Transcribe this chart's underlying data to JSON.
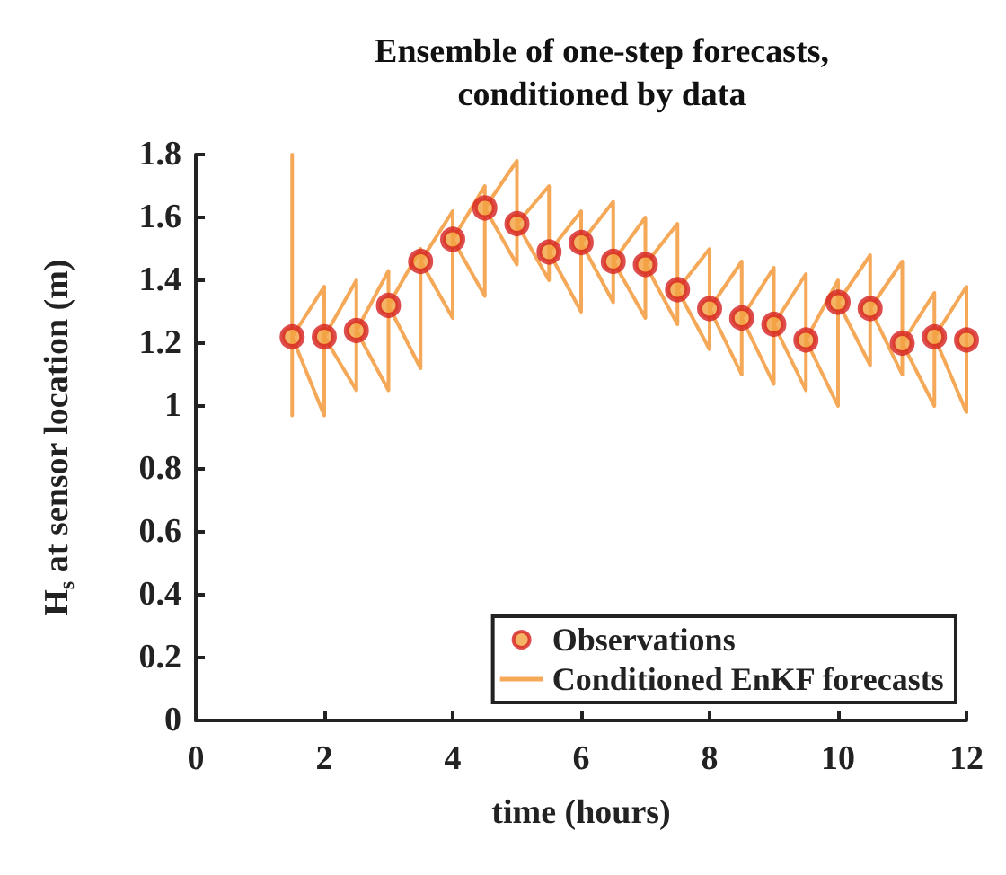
{
  "chart_data": {
    "type": "line",
    "title": "Ensemble of one-step forecasts,\nconditioned by data",
    "xlabel": "time (hours)",
    "ylabel": "H$_{s}$ at sensor location (m)",
    "xlim": [
      0,
      12
    ],
    "ylim": [
      0,
      1.8
    ],
    "xticks": [
      0,
      2,
      4,
      6,
      8,
      10,
      12
    ],
    "yticks": [
      0,
      0.2,
      0.4,
      0.6,
      0.8,
      1,
      1.2,
      1.4,
      1.6,
      1.8
    ],
    "grid": false,
    "legend": "bottom right",
    "series": [
      {
        "name": "Conditioned EnKF forecasts",
        "type": "line",
        "color": "#f5a857",
        "marker": "none",
        "line_style": "solid",
        "x": [
          1.5,
          1.5,
          2,
          2,
          2.5,
          2.5,
          3,
          3,
          3.5,
          3.5,
          4,
          4,
          4.5,
          4.5,
          5,
          5,
          5.5,
          5.5,
          6,
          6,
          6.5,
          6.5,
          7,
          7,
          7.5,
          7.5,
          8,
          8,
          8.5,
          8.5,
          9,
          9,
          9.5,
          9.5,
          10,
          10,
          10.5,
          10.5,
          11,
          11,
          11.5,
          11.5,
          12,
          12,
          null,
          1.5,
          1.5,
          2,
          2,
          2.5,
          2.5,
          3,
          3,
          3.5,
          3.5,
          4,
          4,
          4.5,
          4.5,
          5,
          5,
          5.5,
          5.5,
          6,
          6,
          6.5,
          6.5,
          7,
          7,
          7.5,
          7.5,
          8,
          8,
          8.5,
          8.5,
          9,
          9,
          9.5,
          9.5,
          10,
          10,
          10.5,
          10.5,
          11,
          11,
          11.5,
          11.5,
          12,
          12
        ],
        "values": [
          1.8,
          1.22,
          1.38,
          1.22,
          1.4,
          1.24,
          1.43,
          1.32,
          1.5,
          1.46,
          1.62,
          1.53,
          1.7,
          1.63,
          1.78,
          1.58,
          1.7,
          1.49,
          1.62,
          1.52,
          1.65,
          1.46,
          1.6,
          1.45,
          1.58,
          1.37,
          1.5,
          1.31,
          1.46,
          1.28,
          1.44,
          1.26,
          1.42,
          1.21,
          1.4,
          1.33,
          1.48,
          1.31,
          1.46,
          1.2,
          1.36,
          1.22,
          1.38,
          1.21,
          null,
          0.97,
          1.22,
          0.97,
          1.22,
          1.05,
          1.24,
          1.05,
          1.32,
          1.12,
          1.46,
          1.28,
          1.53,
          1.35,
          1.63,
          1.45,
          1.58,
          1.4,
          1.49,
          1.3,
          1.52,
          1.33,
          1.46,
          1.28,
          1.45,
          1.26,
          1.37,
          1.18,
          1.31,
          1.1,
          1.28,
          1.07,
          1.26,
          1.05,
          1.21,
          1.0,
          1.33,
          1.13,
          1.31,
          1.1,
          1.2,
          1.0,
          1.22,
          0.98,
          1.21
        ]
      },
      {
        "name": "Observations",
        "type": "scatter",
        "color": "#d62020",
        "marker": "circle",
        "x": [
          1.5,
          2,
          2.5,
          3,
          3.5,
          4,
          4.5,
          5,
          5.5,
          6,
          6.5,
          7,
          7.5,
          8,
          8.5,
          9,
          9.5,
          10,
          10.5,
          11,
          11.5,
          12
        ],
        "values": [
          1.22,
          1.22,
          1.24,
          1.32,
          1.46,
          1.53,
          1.63,
          1.58,
          1.49,
          1.52,
          1.46,
          1.45,
          1.37,
          1.31,
          1.28,
          1.26,
          1.21,
          1.33,
          1.31,
          1.2,
          1.22,
          1.21
        ]
      }
    ]
  }
}
